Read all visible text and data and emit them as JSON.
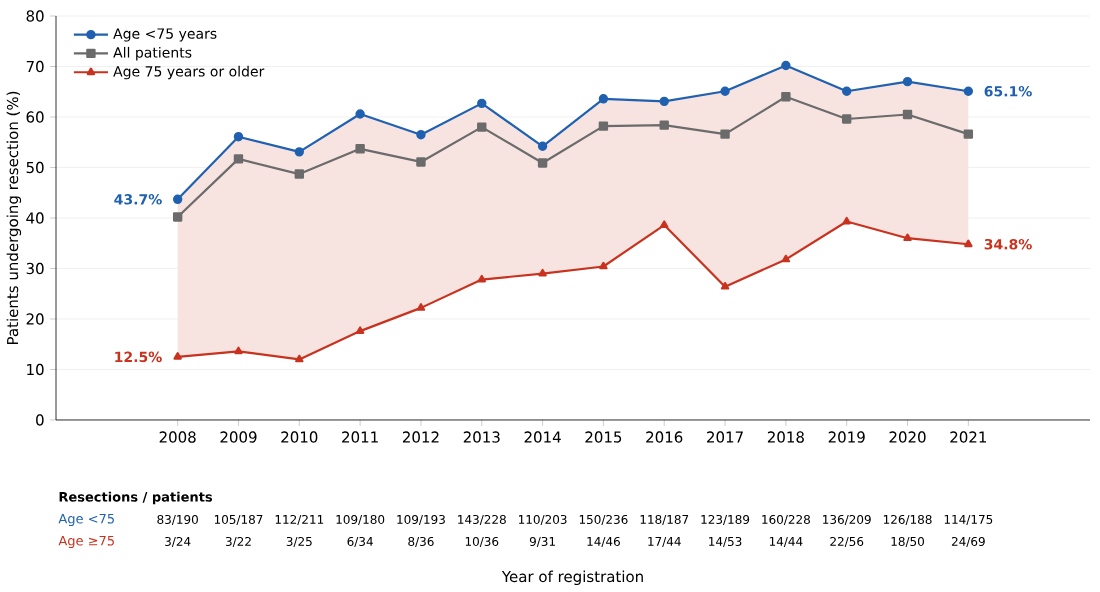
{
  "chart_data": {
    "type": "line",
    "ylabel": "Patients undergoing resection (%)",
    "x": [
      2008,
      2009,
      2010,
      2011,
      2012,
      2013,
      2014,
      2015,
      2016,
      2017,
      2018,
      2019,
      2020,
      2021
    ],
    "xlim": [
      2006,
      2023
    ],
    "xticks": [
      2008,
      2009,
      2010,
      2011,
      2012,
      2013,
      2014,
      2015,
      2016,
      2017,
      2018,
      2019,
      2020,
      2021
    ],
    "ylim": [
      0,
      80
    ],
    "yticks": [
      0,
      10,
      20,
      30,
      40,
      50,
      60,
      70,
      80
    ],
    "grid": "y",
    "legend": "top left",
    "series": [
      {
        "name": "Age <75 years",
        "color": "#2060b0",
        "marker": "circle",
        "values": [
          43.7,
          56.1,
          53.1,
          60.6,
          56.5,
          62.7,
          54.2,
          63.6,
          63.1,
          65.1,
          70.2,
          65.1,
          67.0,
          65.1
        ],
        "value_labels": [
          "43.7%",
          null,
          null,
          null,
          null,
          null,
          null,
          null,
          null,
          null,
          null,
          null,
          null,
          "65.1%"
        ]
      },
      {
        "name": "All patients",
        "color": "#6b6b6b",
        "marker": "square",
        "values": [
          40.2,
          51.7,
          48.7,
          53.7,
          51.1,
          58.0,
          50.9,
          58.2,
          58.4,
          56.6,
          64.0,
          59.6,
          60.5,
          56.6
        ],
        "lower": [
          12.5,
          13.6,
          12.0,
          17.6,
          22.2,
          27.8,
          29.0,
          30.4,
          38.6,
          26.4,
          31.8,
          39.3,
          36.0,
          34.8
        ],
        "upper": [
          43.7,
          56.1,
          53.1,
          60.6,
          56.5,
          62.7,
          54.2,
          63.6,
          63.1,
          65.1,
          70.2,
          65.1,
          67.0,
          65.1
        ]
      },
      {
        "name": "Age 75 years or older",
        "color": "#c8321e",
        "marker": "triangle",
        "values": [
          12.5,
          13.6,
          12.0,
          17.6,
          22.2,
          27.8,
          29.0,
          30.4,
          38.6,
          26.4,
          31.8,
          39.3,
          36.0,
          34.8
        ],
        "value_labels": [
          "12.5%",
          null,
          null,
          null,
          null,
          null,
          null,
          null,
          null,
          null,
          null,
          null,
          null,
          "34.8%"
        ]
      }
    ],
    "annotations": [
      "**Resections / patients**",
      "Age <75",
      "83/190",
      "105/187",
      "112/211",
      "109/180",
      "109/193",
      "143/228",
      "110/203",
      "150/236",
      "118/187",
      "123/189",
      "160/228",
      "136/209",
      "126/188",
      "114/175",
      "Age ≥75",
      "3/24",
      "3/22",
      "3/25",
      "6/34",
      "8/36",
      "10/36",
      "9/31",
      "14/46",
      "17/44",
      "14/53",
      "14/44",
      "22/56",
      "18/50",
      "24/69",
      "Year of registration"
    ]
  }
}
